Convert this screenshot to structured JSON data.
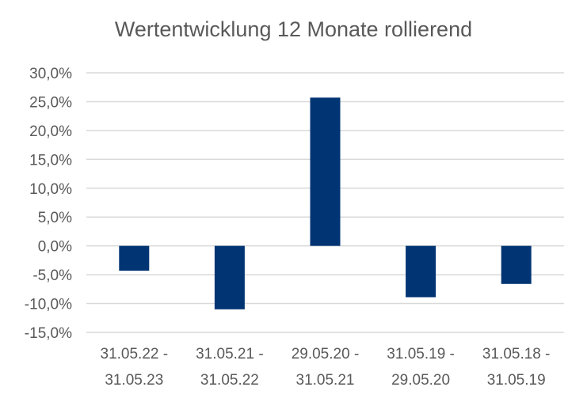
{
  "chart_data": {
    "type": "bar",
    "title": "Wertentwicklung 12 Monate rollierend",
    "categories": [
      [
        "31.05.22 -",
        "31.05.23"
      ],
      [
        "31.05.21 -",
        "31.05.22"
      ],
      [
        "29.05.20 -",
        "31.05.21"
      ],
      [
        "31.05.19 -",
        "29.05.20"
      ],
      [
        "31.05.18 -",
        "31.05.19"
      ]
    ],
    "values": [
      -4.3,
      -11.0,
      25.7,
      -8.9,
      -6.6
    ],
    "ylim": [
      -15,
      30
    ],
    "yticks": [
      30,
      25,
      20,
      15,
      10,
      5,
      0,
      -5,
      -10,
      -15
    ],
    "ytick_labels": [
      "30,0%",
      "25,0%",
      "20,0%",
      "15,0%",
      "10,0%",
      "5,0%",
      "0,0%",
      "-5,0%",
      "-10,0%",
      "-15,0%"
    ],
    "grid": true,
    "bar_color": "#003473",
    "grid_color": "#d9d9d9",
    "text_color": "#595959"
  }
}
